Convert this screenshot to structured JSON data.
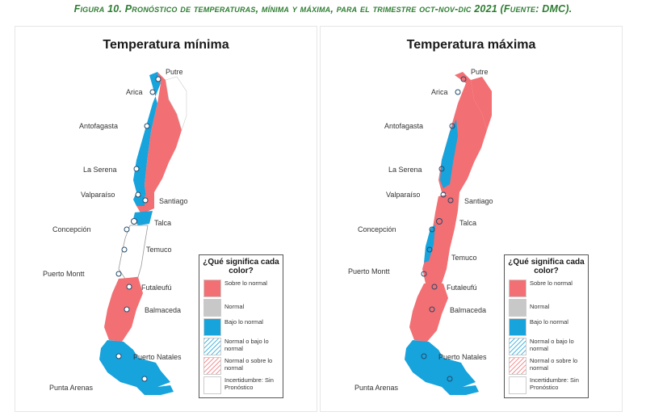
{
  "caption": "Figura 10. Pronóstico de temperaturas, mínima y máxima, para el trimestre oct-nov-dic 2021 (Fuente: DMC).",
  "colors": {
    "above_normal": "#f26f73",
    "normal": "#c8c8c8",
    "below_normal": "#17a3dc",
    "caption_green": "#2e7d32"
  },
  "panels": {
    "min": {
      "title": "Temperatura mínima",
      "cities": {
        "putre": "Putre",
        "arica": "Arica",
        "antofagasta": "Antofagasta",
        "la_serena": "La Serena",
        "valparaiso": "Valparaíso",
        "santiago": "Santiago",
        "concepcion": "Concepción",
        "talca": "Talca",
        "temuco": "Temuco",
        "puerto_montt": "Puerto Montt",
        "futaleufu": "Futaleufú",
        "balmaceda": "Balmaceda",
        "puerto_natales": "Puerto Natales",
        "punta_arenas": "Punta Arenas"
      }
    },
    "max": {
      "title": "Temperatura máxima",
      "cities": {
        "putre": "Putre",
        "arica": "Arica",
        "antofagasta": "Antofagasta",
        "la_serena": "La Serena",
        "valparaiso": "Valparaíso",
        "santiago": "Santiago",
        "concepcion": "Concepción",
        "talca": "Talca",
        "temuco": "Temuco",
        "puerto_montt": "Puerto Montt",
        "futaleufu": "Futaleufú",
        "balmaceda": "Balmaceda",
        "puerto_natales": "Puerto Natales",
        "punta_arenas": "Punta Arenas"
      }
    }
  },
  "legend": {
    "title": "¿Qué significa cada color?",
    "items": [
      {
        "label": "Sobre lo normal"
      },
      {
        "label": "Normal"
      },
      {
        "label": "Bajo lo normal"
      },
      {
        "label": "Normal o bajo lo normal"
      },
      {
        "label": "Normal o sobre lo normal"
      },
      {
        "label": "Incertidumbre: Sin Pronóstico"
      }
    ]
  }
}
